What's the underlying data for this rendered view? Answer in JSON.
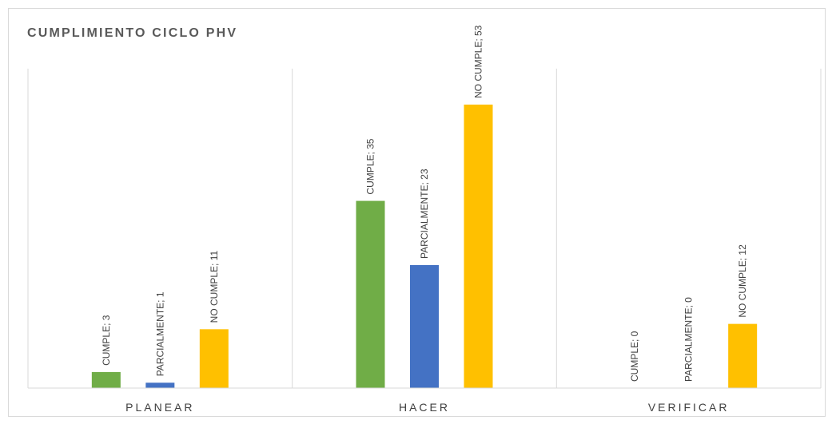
{
  "chart_data": {
    "type": "bar",
    "title": "CUMPLIMIENTO CICLO PHV",
    "categories": [
      "PLANEAR",
      "HACER",
      "VERIFICAR"
    ],
    "series": [
      {
        "name": "CUMPLE",
        "color": "#70ad47",
        "values": [
          3,
          35,
          0
        ]
      },
      {
        "name": "PARCIALMENTE",
        "color": "#4472c4",
        "values": [
          1,
          23,
          0
        ]
      },
      {
        "name": "NO CUMPLE",
        "color": "#ffc000",
        "values": [
          11,
          53,
          12
        ]
      }
    ],
    "data_labels": [
      [
        "CUMPLE; 3",
        "CUMPLE; 35",
        "CUMPLE; 0"
      ],
      [
        "PARCIALMENTE; 1",
        "PARCIALMENTE; 23",
        "PARCIALMENTE; 0"
      ],
      [
        "NO CUMPLE; 11",
        "NO CUMPLE; 53",
        "NO CUMPLE; 12"
      ]
    ],
    "ylim": [
      0,
      53
    ],
    "grid": "vertical-category-separators",
    "legend": "none"
  }
}
